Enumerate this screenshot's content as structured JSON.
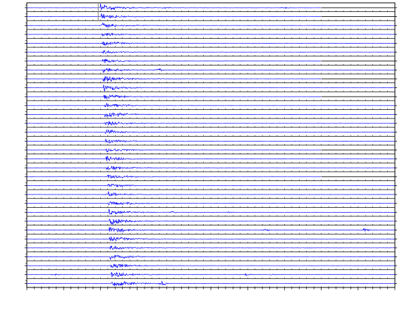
{
  "chart_data": {
    "type": "line",
    "title": "",
    "xlabel": "",
    "ylabel": "",
    "trace_color": "#0000ff",
    "axis_color": "#000000",
    "pick_line_color": "#808080",
    "grid": false,
    "legend": "none",
    "trace_count": 32,
    "xlim": [
      0,
      100
    ],
    "first_arrival": {
      "start_x": 20.0,
      "end_x": 22.9
    },
    "record_end_x": [
      80,
      80,
      100,
      100,
      100,
      100,
      80,
      100,
      80,
      100,
      80,
      100,
      100,
      100,
      100,
      100,
      80,
      100,
      100,
      80,
      100,
      100,
      100,
      100,
      100,
      100,
      100,
      100,
      100,
      100,
      100,
      100
    ],
    "max_amplitude": [
      0.55,
      0.45,
      0.42,
      0.35,
      0.38,
      0.3,
      0.36,
      0.4,
      0.48,
      0.46,
      0.44,
      0.42,
      0.48,
      0.4,
      0.38,
      0.36,
      0.35,
      0.38,
      0.4,
      0.38,
      0.36,
      0.34,
      0.44,
      0.48,
      0.5,
      0.46,
      0.44,
      0.42,
      0.46,
      0.48,
      0.5,
      0.52
    ],
    "secondary_events": [
      {
        "trace": 0,
        "x": 38,
        "amplitude": 0.1
      },
      {
        "trace": 0,
        "x": 70,
        "amplitude": 0.12
      },
      {
        "trace": 7,
        "x": 36,
        "amplitude": 0.18
      },
      {
        "trace": 21,
        "x": 22,
        "amplitude": 0.1
      },
      {
        "trace": 23,
        "x": 40,
        "amplitude": 0.12
      },
      {
        "trace": 23,
        "x": 55,
        "amplitude": 0.1
      },
      {
        "trace": 25,
        "x": 92,
        "amplitude": 0.28
      },
      {
        "trace": 25,
        "x": 65,
        "amplitude": 0.12
      },
      {
        "trace": 30,
        "x": 60,
        "amplitude": 0.15
      },
      {
        "trace": 30,
        "x": 67,
        "amplitude": 0.12
      },
      {
        "trace": 30,
        "x": 8,
        "amplitude": 0.1
      },
      {
        "trace": 31,
        "x": 37,
        "amplitude": 0.35
      }
    ]
  }
}
